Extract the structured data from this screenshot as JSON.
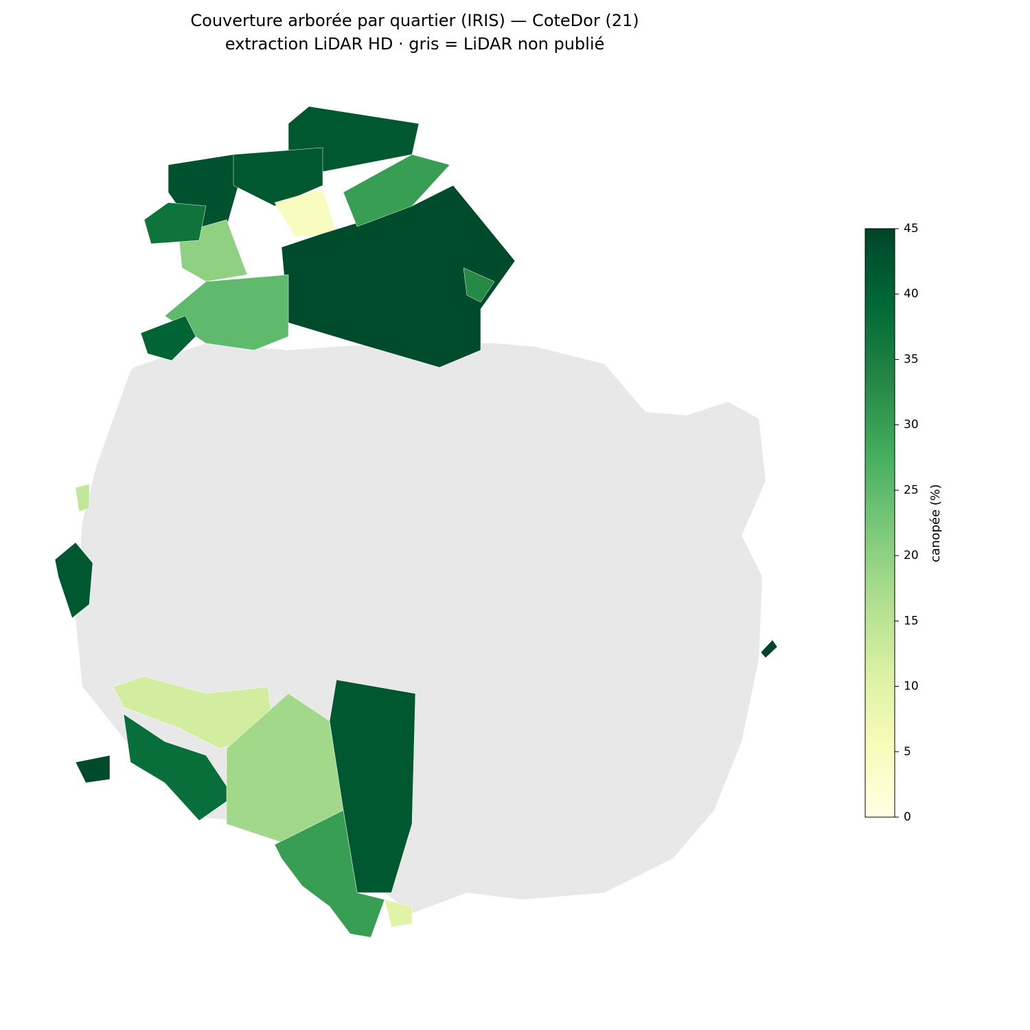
{
  "title": "Couverture arborée par quartier (IRIS) — CoteDor (21)",
  "subtitle": "extraction LiDAR HD · gris = LiDAR non publié",
  "colorbar": {
    "label": "canopée (%)",
    "lim": [
      0,
      45
    ],
    "ticks": [
      0,
      5,
      10,
      15,
      20,
      25,
      30,
      35,
      40,
      45
    ],
    "colors": [
      "#ffffe5",
      "#f7fcb9",
      "#d9f0a3",
      "#addd8e",
      "#78c679",
      "#41ab5d",
      "#238443",
      "#006837",
      "#004529"
    ]
  },
  "regions": {
    "values": [
      43,
      42,
      42,
      5,
      20,
      44,
      30,
      25,
      40,
      37,
      33,
      12,
      38,
      18,
      42,
      30,
      10,
      44,
      42,
      14,
      45
    ]
  }
}
